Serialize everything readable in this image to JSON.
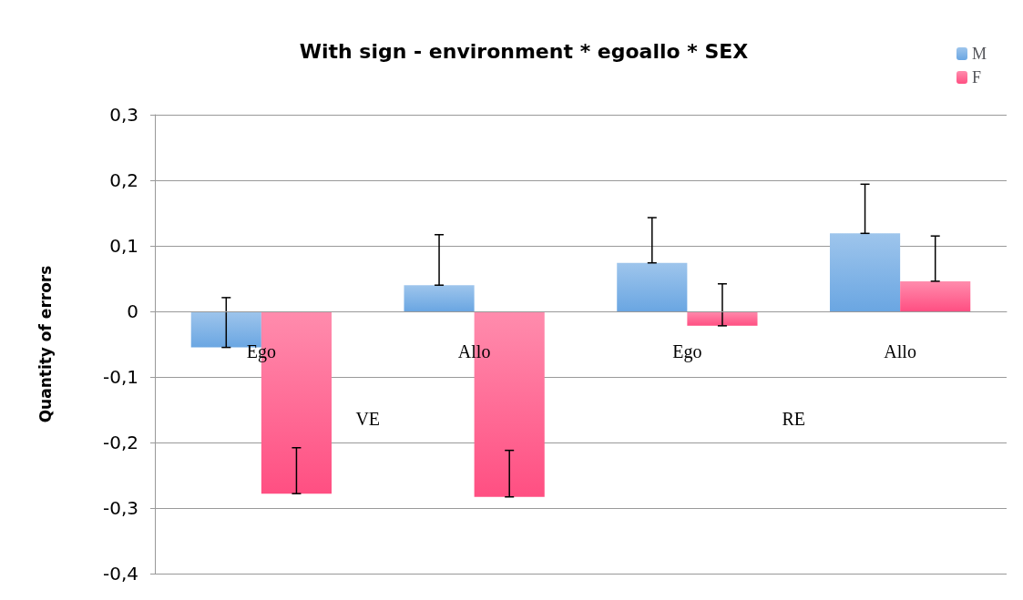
{
  "chart_data": {
    "type": "bar",
    "title": "With sign - environment * egoallo * SEX",
    "ylabel": "Quantity of errors",
    "categories": [
      "Ego",
      "Allo",
      "Ego",
      "Allo"
    ],
    "annotations": [
      "VE",
      "RE"
    ],
    "series": [
      {
        "name": "M",
        "color": "#6aa6e2",
        "values": [
          -0.055,
          0.04,
          0.074,
          0.119
        ],
        "errors": [
          [
            -0.055,
            0.021
          ],
          [
            0.04,
            0.117
          ],
          [
            0.074,
            0.143
          ],
          [
            0.119,
            0.194
          ]
        ]
      },
      {
        "name": "F",
        "color": "#ff4f82",
        "values": [
          -0.278,
          -0.283,
          -0.022,
          0.046
        ],
        "errors": [
          [
            -0.278,
            -0.208
          ],
          [
            -0.283,
            -0.212
          ],
          [
            -0.022,
            0.042
          ],
          [
            0.046,
            0.115
          ]
        ]
      }
    ],
    "ylim": [
      -0.4,
      0.3
    ],
    "yticks": [
      {
        "value": -0.4,
        "label": "-0,4"
      },
      {
        "value": -0.3,
        "label": "-0,3"
      },
      {
        "value": -0.2,
        "label": "-0,2"
      },
      {
        "value": -0.1,
        "label": "-0,1"
      },
      0,
      {
        "value": 0.1,
        "label": "0,1"
      },
      {
        "value": 0.2,
        "label": "0,2"
      },
      {
        "value": 0.3,
        "label": "0,3"
      }
    ],
    "grid": "y",
    "legend": "top right"
  }
}
